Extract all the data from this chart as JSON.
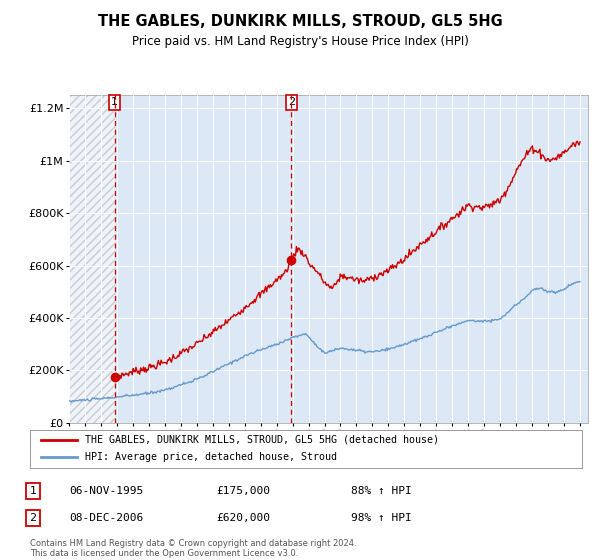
{
  "title": "THE GABLES, DUNKIRK MILLS, STROUD, GL5 5HG",
  "subtitle": "Price paid vs. HM Land Registry's House Price Index (HPI)",
  "legend_line1": "THE GABLES, DUNKIRK MILLS, STROUD, GL5 5HG (detached house)",
  "legend_line2": "HPI: Average price, detached house, Stroud",
  "sale1_label": "1",
  "sale1_date": "06-NOV-1995",
  "sale1_price": "£175,000",
  "sale1_hpi": "88% ↑ HPI",
  "sale1_year": 1995.85,
  "sale1_value": 175000,
  "sale2_label": "2",
  "sale2_date": "08-DEC-2006",
  "sale2_price": "£620,000",
  "sale2_hpi": "98% ↑ HPI",
  "sale2_year": 2006.92,
  "sale2_value": 620000,
  "red_color": "#cc0000",
  "blue_color": "#6699cc",
  "bg_color": "#dce8f5",
  "grid_color": "#c8d8e8",
  "ylim": [
    0,
    1250000
  ],
  "xlim_start": 1993.0,
  "xlim_end": 2025.5,
  "footnote1": "Contains HM Land Registry data © Crown copyright and database right 2024.",
  "footnote2": "This data is licensed under the Open Government Licence v3.0."
}
